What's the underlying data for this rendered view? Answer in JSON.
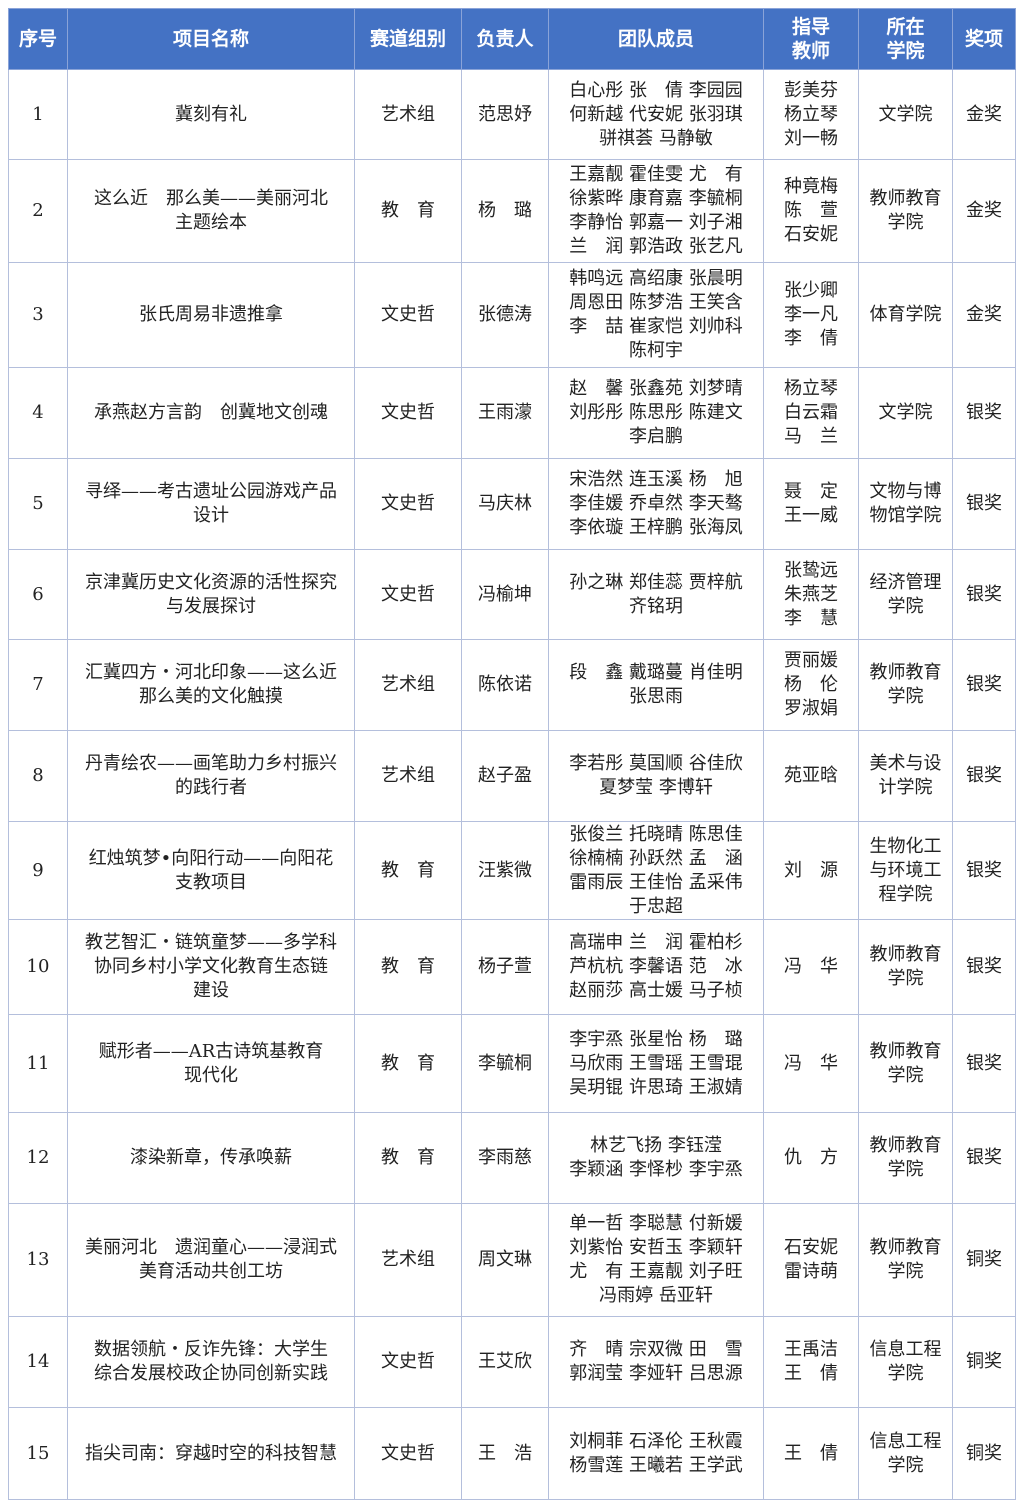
{
  "header": [
    "序号",
    "项目名称",
    "赛道组别",
    "负责人",
    "团队成员",
    "指导\n教师",
    "所在\n学院",
    "奖项"
  ],
  "rows": [
    {
      "no": "1",
      "name": "冀刻有礼",
      "track": "艺术组",
      "leader": "范思妤",
      "members": [
        "白心彤 张　倩 李园园",
        "何新越 代安妮 张羽琪",
        "骈祺荟 马静敏"
      ],
      "advisors": "彭美芬\n杨立琴\n刘一畅",
      "college": "文学院",
      "award": "金奖"
    },
    {
      "no": "2",
      "name": "这么近　那么美——美丽河北\n主题绘本",
      "track": "教　育",
      "leader": "杨　璐",
      "members": [
        "王嘉靓 霍佳雯 尤　有",
        "徐紫晔 康育嘉 李毓桐",
        "李静怡 郭嘉一 刘子湘",
        "兰　润 郭浩政 张艺凡"
      ],
      "advisors": "种竟梅\n陈　萱\n石安妮",
      "college": "教师教育\n学院",
      "award": "金奖"
    },
    {
      "no": "3",
      "name": "张氏周易非遗推拿",
      "track": "文史哲",
      "leader": "张德涛",
      "members": [
        "韩鸣远 高绍康 张晨明",
        "周恩田 陈梦浩 王笑含",
        "李　喆 崔家恺 刘帅科",
        "陈柯宇"
      ],
      "advisors": "张少卿\n李一凡\n李　倩",
      "college": "体育学院",
      "award": "金奖"
    },
    {
      "no": "4",
      "name": "承燕赵方言韵　创冀地文创魂",
      "track": "文史哲",
      "leader": "王雨濛",
      "members": [
        "赵　馨 张鑫苑 刘梦晴",
        "刘彤彤 陈思彤 陈建文",
        "李启鹏"
      ],
      "advisors": "杨立琴\n白云霜\n马　兰",
      "college": "文学院",
      "award": "银奖"
    },
    {
      "no": "5",
      "name": "寻绎——考古遗址公园游戏产品\n设计",
      "track": "文史哲",
      "leader": "马庆林",
      "members": [
        "宋浩然 连玉溪 杨　旭",
        "李佳媛 乔卓然 李天骜",
        "李依璇 王梓鹏 张海凤"
      ],
      "advisors": "聂　定\n王一威",
      "college": "文物与博\n物馆学院",
      "award": "银奖"
    },
    {
      "no": "6",
      "name": "京津冀历史文化资源的活性探究\n与发展探讨",
      "track": "文史哲",
      "leader": "冯榆坤",
      "members": [
        "孙之琳 郑佳蕊 贾梓航",
        "齐铭玥"
      ],
      "advisors": "张鸷远\n朱燕芝\n李　慧",
      "college": "经济管理\n学院",
      "award": "银奖"
    },
    {
      "no": "7",
      "name": "汇冀四方・河北印象——这么近\n那么美的文化触摸",
      "track": "艺术组",
      "leader": "陈依诺",
      "members": [
        "段　鑫 戴璐蔓 肖佳明",
        "张思雨"
      ],
      "advisors": "贾丽媛\n杨　伦\n罗淑娟",
      "college": "教师教育\n学院",
      "award": "银奖"
    },
    {
      "no": "8",
      "name": "丹青绘农——画笔助力乡村振兴\n的践行者",
      "track": "艺术组",
      "leader": "赵子盈",
      "members": [
        "李若彤 莫国顺 谷佳欣",
        "夏梦莹 李博轩"
      ],
      "advisors": "苑亚晗",
      "college": "美术与设\n计学院",
      "award": "银奖"
    },
    {
      "no": "9",
      "name": "红烛筑梦•向阳行动——向阳花\n支教项目",
      "track": "教　育",
      "leader": "汪紫微",
      "members": [
        "张俊兰 托晓晴 陈思佳",
        "徐楠楠 孙跃然 孟　涵",
        "雷雨辰 王佳怡 孟采伟",
        "于忠超"
      ],
      "advisors": "刘　源",
      "college": "生物化工\n与环境工\n程学院",
      "award": "银奖"
    },
    {
      "no": "10",
      "name": "教艺智汇・链筑童梦——多学科\n协同乡村小学文化教育生态链\n建设",
      "track": "教　育",
      "leader": "杨子萱",
      "members": [
        "高瑞申 兰　润 霍柏杉",
        "芦杭杭 李馨语 范　冰",
        "赵丽莎 高士媛 马子桢"
      ],
      "advisors": "冯　华",
      "college": "教师教育\n学院",
      "award": "银奖"
    },
    {
      "no": "11",
      "name": "赋形者——AR古诗筑基教育\n现代化",
      "track": "教　育",
      "leader": "李毓桐",
      "members": [
        "李宇烝 张星怡 杨　璐",
        "马欣雨 王雪瑶 王雪琨",
        "吴玥锟 许思琦 王淑婧"
      ],
      "advisors": "冯　华",
      "college": "教师教育\n学院",
      "award": "银奖"
    },
    {
      "no": "12",
      "name": "漆染新章，传承唤薪",
      "track": "教　育",
      "leader": "李雨慈",
      "members": [
        "林艺飞扬 李钰滢",
        "李颖涵 李怿杪 李宇烝"
      ],
      "advisors": "仇　方",
      "college": "教师教育\n学院",
      "award": "银奖"
    },
    {
      "no": "13",
      "name": "美丽河北　遗润童心——浸润式\n美育活动共创工坊",
      "track": "艺术组",
      "leader": "周文琳",
      "members": [
        "单一哲 李聪慧 付新媛",
        "刘紫怡 安哲玉 李颖轩",
        "尤　有 王嘉靓 刘子旺",
        "冯雨婷 岳亚轩"
      ],
      "advisors": "石安妮\n雷诗萌",
      "college": "教师教育\n学院",
      "award": "铜奖"
    },
    {
      "no": "14",
      "name": "数据领航・反诈先锋：大学生\n综合发展校政企协同创新实践",
      "track": "文史哲",
      "leader": "王艾欣",
      "members": [
        "齐　晴 宗双微 田　雪",
        "郭润莹 李娅轩 吕思源"
      ],
      "advisors": "王禹洁\n王　倩",
      "college": "信息工程\n学院",
      "award": "铜奖"
    },
    {
      "no": "15",
      "name": "指尖司南：穿越时空的科技智慧",
      "track": "文史哲",
      "leader": "王　浩",
      "members": [
        "刘桐菲 石泽伦 王秋霞",
        "杨雪莲 王曦若 王学武"
      ],
      "advisors": "王　倩",
      "college": "信息工程\n学院",
      "award": "铜奖"
    }
  ]
}
